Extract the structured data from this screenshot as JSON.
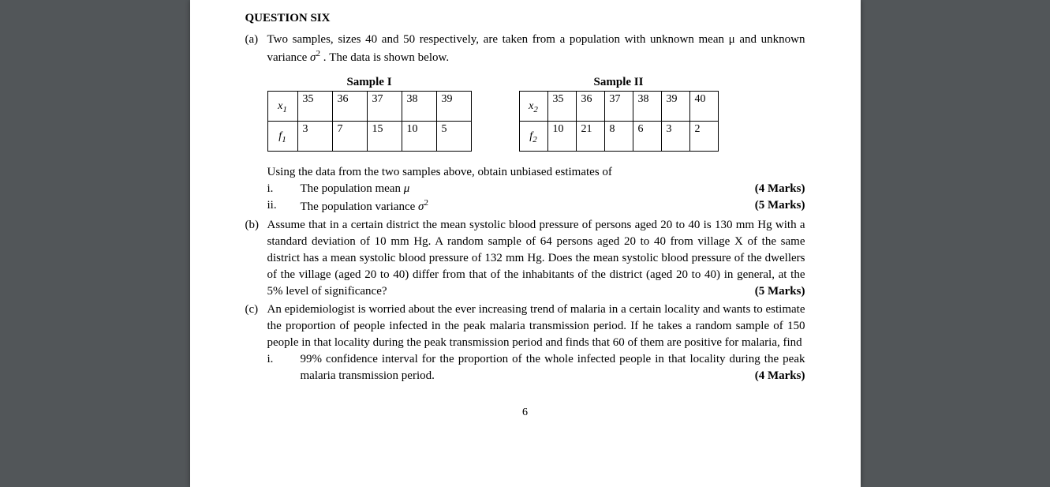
{
  "question": {
    "title": "QUESTION SIX",
    "partA": {
      "label": "(a)",
      "text": "Two samples, sizes 40 and 50 respectively, are taken from a population with unknown mean μ and unknown variance σ² . The data is shown below."
    },
    "tables": {
      "sample1": {
        "title": "Sample I",
        "rowLabel1": "x₁",
        "rowLabel2": "f₁",
        "x": [
          "35",
          "36",
          "37",
          "38",
          "39"
        ],
        "f": [
          "3",
          "7",
          "15",
          "10",
          "5"
        ]
      },
      "sample2": {
        "title": "Sample II",
        "rowLabel1": "x₂",
        "rowLabel2": "f₂",
        "x": [
          "35",
          "36",
          "37",
          "38",
          "39",
          "40"
        ],
        "f": [
          "10",
          "21",
          "8",
          "6",
          "3",
          "2"
        ]
      }
    },
    "usingText": "Using the data from the two samples above, obtain unbiased estimates of",
    "subItems": {
      "i": {
        "num": "i.",
        "text": "The population mean μ",
        "marks": "(4 Marks)"
      },
      "ii": {
        "num": "ii.",
        "text": "The population variance σ²",
        "marks": "(5 Marks)"
      }
    },
    "partB": {
      "label": "(b)",
      "text": "Assume that in a certain district the mean systolic blood pressure of persons aged 20 to 40 is 130 mm Hg with a standard deviation of 10 mm Hg. A random sample of 64 persons aged 20 to 40 from village X of the same district has a mean systolic blood pressure of 132 mm Hg. Does the mean systolic blood pressure of the dwellers of the village (aged 20 to 40) differ from that of the inhabitants of the district (aged 20 to 40) in general, at the 5% level of significance?",
      "marks": "(5 Marks)"
    },
    "partC": {
      "label": "(c)",
      "text": "An epidemiologist is worried about the ever increasing trend of malaria in a certain locality and wants to estimate the proportion of people infected in the peak malaria transmission period. If he takes a random sample of 150 people in that locality during the peak transmission period and finds that 60 of them are positive for malaria, find",
      "subI": {
        "num": "i.",
        "text": "99% confidence interval for the proportion of the whole infected people in that locality during the peak malaria transmission period.",
        "marks": "(4 Marks)"
      }
    }
  },
  "pageNumber": "6",
  "styles": {
    "backgroundColor": "#525659",
    "pageColor": "#ffffff",
    "textColor": "#000000",
    "fontFamily": "Times New Roman",
    "baseFontSize": 15
  }
}
